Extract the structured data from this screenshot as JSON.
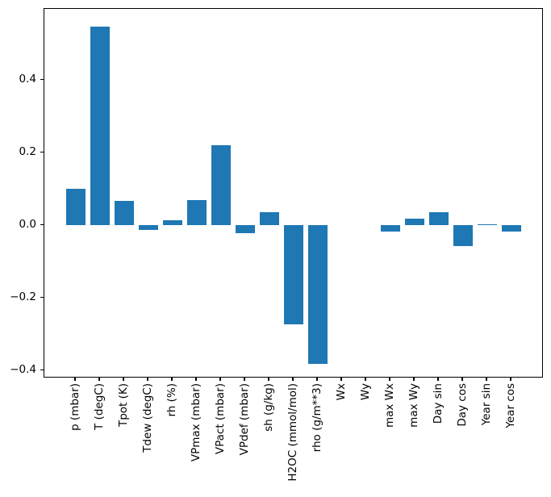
{
  "chart_data": {
    "type": "bar",
    "title": "",
    "xlabel": "",
    "ylabel": "",
    "categories": [
      "p (mbar)",
      "T (degC)",
      "Tpot (K)",
      "Tdew (degC)",
      "rh (%)",
      "VPmax (mbar)",
      "VPact (mbar)",
      "VPdef (mbar)",
      "sh (g/kg)",
      "H2OC (mmol/mol)",
      "rho (g/m**3)",
      "Wx",
      "Wy",
      "max Wx",
      "max Wy",
      "Day sin",
      "Day cos",
      "Year sin",
      "Year cos"
    ],
    "values": [
      0.1,
      0.548,
      0.066,
      -0.013,
      0.013,
      0.07,
      0.221,
      -0.022,
      0.036,
      -0.274,
      -0.381,
      0.0,
      0.0,
      -0.018,
      0.017,
      0.036,
      -0.058,
      0.003,
      -0.017
    ],
    "ylim": [
      -0.422,
      0.596
    ],
    "yticks": [
      0.4,
      0.2,
      0.0,
      -0.2,
      -0.4
    ],
    "ytick_labels": [
      "0.4",
      "0.2",
      "0.0",
      "−0.2",
      "−0.4"
    ],
    "xtick_rotation_deg": 90,
    "grid": false,
    "legend": null,
    "bar_color": "#1f77b4",
    "spine_color": "#000000",
    "background_color": "#ffffff"
  }
}
